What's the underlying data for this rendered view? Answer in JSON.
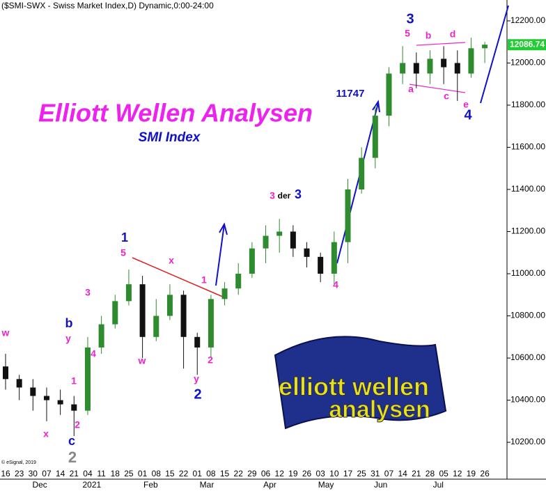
{
  "chart_data": {
    "type": "candlestick",
    "title": "Elliott Wellen Analysen",
    "subtitle": "SMI Index",
    "header": "($SMI-SWX - Swiss Market Index,D) Dynamic,0:00-24:00",
    "credit": "© eSignal, 2019",
    "categories": [
      "16",
      "23",
      "30",
      "07",
      "14",
      "21",
      "04",
      "11",
      "18",
      "25",
      "01",
      "08",
      "15",
      "22",
      "01",
      "08",
      "15",
      "22",
      "29",
      "06",
      "12",
      "19",
      "26",
      "03",
      "10",
      "17",
      "25",
      "31",
      "07",
      "14",
      "21",
      "28",
      "05",
      "12",
      "19",
      "26"
    ],
    "months": [
      {
        "index": 2.5,
        "label": "Dec"
      },
      {
        "index": 6.3,
        "label": "2021"
      },
      {
        "index": 10.6,
        "label": "Feb"
      },
      {
        "index": 14.7,
        "label": "Mar"
      },
      {
        "index": 19.3,
        "label": "Apr"
      },
      {
        "index": 23.4,
        "label": "May"
      },
      {
        "index": 27.4,
        "label": "Jun"
      },
      {
        "index": 31.6,
        "label": "Jul"
      }
    ],
    "open": [
      10560,
      10500,
      10460,
      10420,
      10400,
      10380,
      10350,
      10650,
      10760,
      10870,
      10950,
      10700,
      10800,
      10900,
      10700,
      10650,
      10880,
      10930,
      11000,
      11120,
      11180,
      11200,
      11120,
      11080,
      11000,
      11150,
      11400,
      11550,
      11750,
      11950,
      12000,
      11950,
      12020,
      12000,
      11950,
      12070
    ],
    "high": [
      10620,
      10520,
      10500,
      10460,
      10450,
      10420,
      10700,
      10800,
      10900,
      11020,
      10990,
      10880,
      10950,
      10920,
      10720,
      10900,
      10960,
      11050,
      11150,
      11230,
      11260,
      11230,
      11150,
      11100,
      11200,
      11450,
      11600,
      11800,
      11980,
      12080,
      12050,
      12060,
      12080,
      12060,
      12120,
      12100
    ],
    "low": [
      10450,
      10400,
      10350,
      10300,
      10330,
      10230,
      10330,
      10620,
      10740,
      10850,
      10600,
      10680,
      10780,
      10550,
      10520,
      10600,
      10850,
      10900,
      10980,
      11050,
      11100,
      11080,
      11030,
      10960,
      10950,
      11050,
      11380,
      11500,
      11700,
      11900,
      11880,
      11900,
      11900,
      11820,
      11930,
      12000
    ],
    "close": [
      10500,
      10460,
      10420,
      10400,
      10380,
      10350,
      10650,
      10760,
      10870,
      10950,
      10700,
      10800,
      10900,
      10700,
      10650,
      10880,
      10930,
      11000,
      11120,
      11180,
      11200,
      11120,
      11080,
      11000,
      11150,
      11400,
      11550,
      11750,
      11950,
      12000,
      11950,
      12020,
      11980,
      11950,
      12070,
      12087
    ],
    "up_color": "#2e8b2e",
    "down_color": "#111111",
    "last_price": 12086.74,
    "last_color": "#22cc33",
    "ylim": [
      10035,
      12299
    ],
    "yticks": [
      {
        "value": 10200,
        "label": "10200.00"
      },
      {
        "value": 10400,
        "label": "10400.00"
      },
      {
        "value": 10600,
        "label": "10600.00"
      },
      {
        "value": 10800,
        "label": "10800.00"
      },
      {
        "value": 11000,
        "label": "11000.00"
      },
      {
        "value": 11200,
        "label": "11200.00"
      },
      {
        "value": 11400,
        "label": "11400.00"
      },
      {
        "value": 11600,
        "label": "11600.00"
      },
      {
        "value": 11800,
        "label": "11800.00"
      },
      {
        "value": 12000,
        "label": "12000.00"
      },
      {
        "value": 12200,
        "label": "12200.00"
      }
    ],
    "annotations": [
      {
        "text": "w",
        "color": "#ee22cc"
      },
      {
        "text": "b",
        "color": "#1010cc"
      },
      {
        "text": "y",
        "color": "#ee22cc"
      },
      {
        "text": "1",
        "color": "#ee22cc"
      },
      {
        "text": "2",
        "color": "#ee22cc"
      },
      {
        "text": "x",
        "color": "#ee22cc"
      },
      {
        "text": "c",
        "color": "#1010cc"
      },
      {
        "text": "2",
        "color": "#888888"
      },
      {
        "text": "3",
        "color": "#ee22cc"
      },
      {
        "text": "4",
        "color": "#ee22cc"
      },
      {
        "text": "1",
        "color": "#1010cc"
      },
      {
        "text": "5",
        "color": "#ee22cc"
      },
      {
        "text": "x",
        "color": "#ee22cc"
      },
      {
        "text": "w",
        "color": "#ee22cc"
      },
      {
        "text": "1",
        "color": "#ee22cc"
      },
      {
        "text": "2",
        "color": "#ee22cc"
      },
      {
        "text": "y",
        "color": "#ee22cc"
      },
      {
        "text": "2",
        "color": "#1010cc"
      },
      {
        "text": "3",
        "color": "#ee22cc"
      },
      {
        "text": "der",
        "color": "#000000"
      },
      {
        "text": "3",
        "color": "#1010cc"
      },
      {
        "text": "4",
        "color": "#ee22cc"
      },
      {
        "text": "11747",
        "color": "#1010cc"
      },
      {
        "text": "3",
        "color": "#1010cc"
      },
      {
        "text": "5",
        "color": "#ee22cc"
      },
      {
        "text": "b",
        "color": "#ee22cc"
      },
      {
        "text": "d",
        "color": "#ee22cc"
      },
      {
        "text": "a",
        "color": "#ee22cc"
      },
      {
        "text": "c",
        "color": "#ee22cc"
      },
      {
        "text": "e",
        "color": "#ee22cc"
      },
      {
        "text": "4",
        "color": "#1010cc"
      }
    ]
  },
  "logo": {
    "line1": "elliott wellen",
    "line2": "analysen"
  }
}
